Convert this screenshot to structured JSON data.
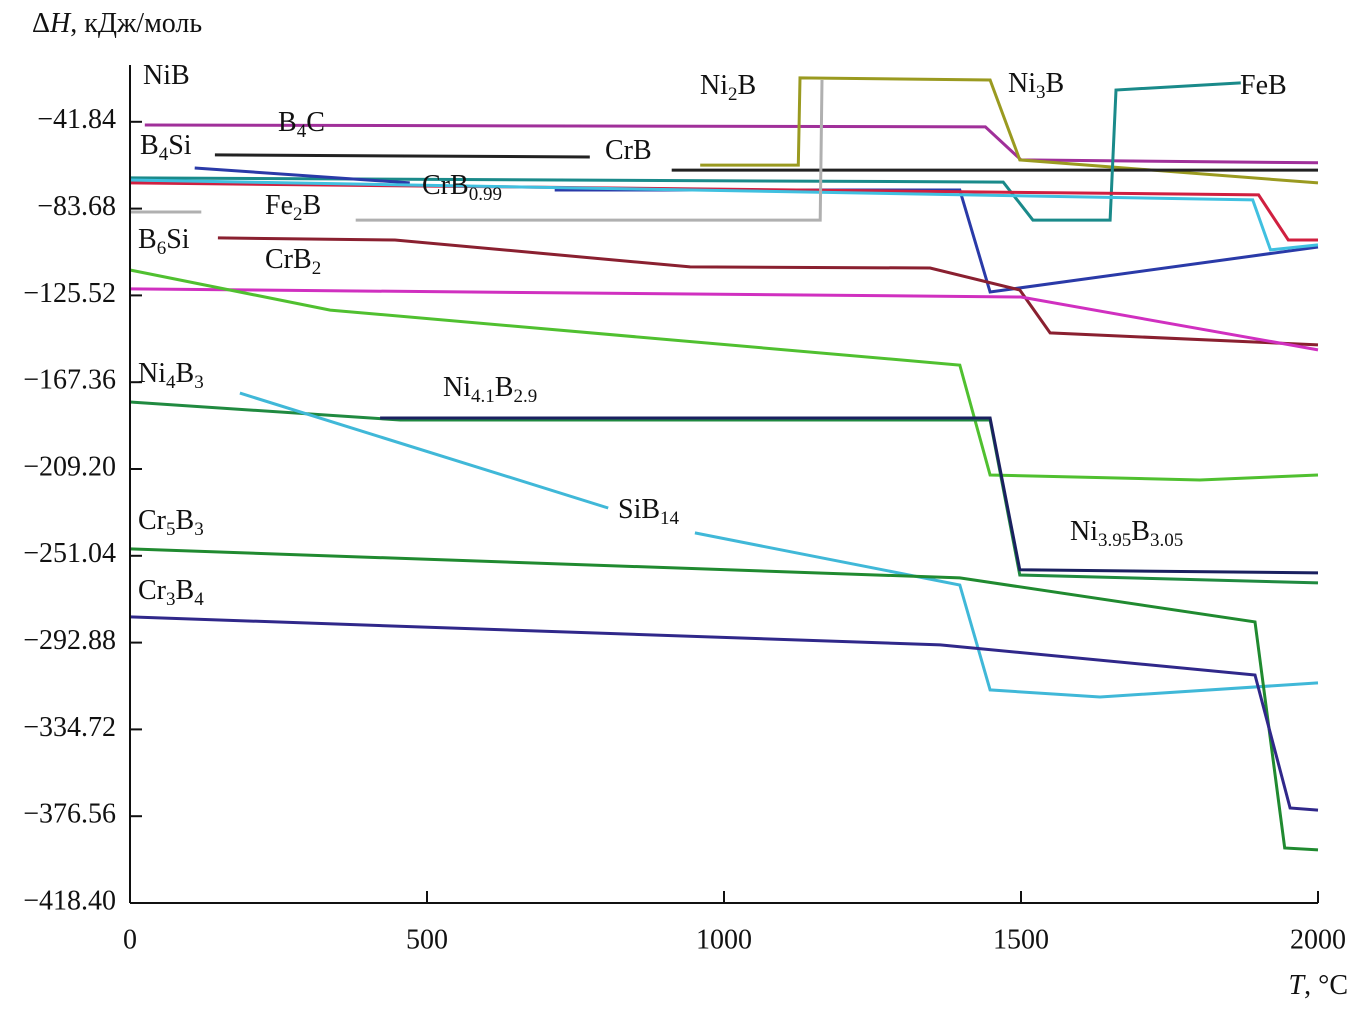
{
  "chart_data": {
    "type": "line",
    "y_label": [
      "Δ",
      "H",
      ", кДж/моль"
    ],
    "x_label": [
      "T",
      ", °C"
    ],
    "xlim": [
      0,
      2000
    ],
    "xticks": [
      0,
      500,
      1000,
      1500,
      2000
    ],
    "ylim": [
      -418.4,
      0
    ],
    "yticks": [
      {
        "value": -41.84,
        "label": "−41.84"
      },
      {
        "value": -83.68,
        "label": "−83.68"
      },
      {
        "value": -125.52,
        "label": "−125.52"
      },
      {
        "value": -167.36,
        "label": "−167.36"
      },
      {
        "value": -209.2,
        "label": "−209.20"
      },
      {
        "value": -251.04,
        "label": "−251.04"
      },
      {
        "value": -292.88,
        "label": "−292.88"
      },
      {
        "value": -334.72,
        "label": "−334.72"
      },
      {
        "value": -376.56,
        "label": "−376.56"
      },
      {
        "value": -418.4,
        "label": "−418.40"
      }
    ],
    "series": [
      {
        "color": "#a0309a",
        "x": [
          25,
          1440,
          1500,
          2000
        ],
        "values": [
          -43.4,
          -44.3,
          -60.2,
          -61.6
        ]
      },
      {
        "color": "#9a9a20",
        "x": [
          960,
          1125,
          1128,
          1448,
          1498,
          2000
        ],
        "values": [
          -62.7,
          -62.7,
          -20.7,
          -21.7,
          -60.2,
          -71.3
        ]
      },
      {
        "color": "#222222",
        "x": [
          143,
          774,
          850,
          912,
          2000
        ],
        "values": [
          -57.8,
          -58.8,
          null,
          -65.1,
          -65.1
        ]
      },
      {
        "color": "#1a8a8a",
        "x": [
          0,
          1470,
          1520,
          1650,
          1660,
          1870
        ],
        "values": [
          -68.9,
          -70.9,
          -89.2,
          -89.2,
          -26.5,
          -23.1
        ]
      },
      {
        "color": "#2a3aa8",
        "x": [
          109,
          471,
          600,
          715,
          1397,
          1448,
          2000
        ],
        "values": [
          -64.1,
          -71.3,
          null,
          -74.7,
          -74.7,
          -123.9,
          -102.2
        ]
      },
      {
        "color": "#d02040",
        "x": [
          0,
          1900,
          1950,
          2000
        ],
        "values": [
          -71.3,
          -77.1,
          -98.8,
          -98.8
        ]
      },
      {
        "color": "#40c0e0",
        "x": [
          0,
          1890,
          1920,
          2000
        ],
        "values": [
          -69.9,
          -79.5,
          -103.6,
          -101.2
        ]
      },
      {
        "color": "#b0b0b0",
        "x": [
          0,
          120,
          250,
          380,
          1162,
          1165
        ],
        "values": [
          -85.3,
          -85.3,
          null,
          -89.2,
          -89.2,
          -21.7
        ]
      },
      {
        "color": "#8a2030",
        "x": [
          148,
          446,
          943,
          1347,
          1498,
          1549,
          2000
        ],
        "values": [
          -97.8,
          -98.8,
          -111.8,
          -112.3,
          -122.9,
          -143.6,
          -149.4
        ]
      },
      {
        "color": "#d030c0",
        "x": [
          0,
          1500,
          1953,
          2000
        ],
        "values": [
          -122.4,
          -126.3,
          -149.4,
          -151.8
        ]
      },
      {
        "color": "#50c030",
        "x": [
          0,
          337,
          1397,
          1448,
          1801,
          2000
        ],
        "values": [
          -113.3,
          -132.6,
          -159.1,
          -212.1,
          -214.5,
          -212.1
        ]
      },
      {
        "color": "#208a40",
        "x": [
          0,
          455,
          1448,
          1498,
          2000
        ],
        "values": [
          -176.9,
          -185.6,
          -185.6,
          -260.3,
          -264.1
        ]
      },
      {
        "color": "#1a2060",
        "x": [
          421,
          1448,
          1498,
          2000
        ],
        "values": [
          -184.6,
          -184.6,
          -257.8,
          -259.3
        ]
      },
      {
        "color": "#40b8d8",
        "x": [
          185,
          805,
          880,
          951,
          1397,
          1448,
          1633,
          2000
        ],
        "values": [
          -172.6,
          -228.0,
          null,
          -240.0,
          -265.1,
          -315.7,
          -319.1,
          -312.3
        ]
      },
      {
        "color": "#208a30",
        "x": [
          0,
          1397,
          1894,
          1944,
          2000
        ],
        "values": [
          -247.7,
          -261.7,
          -282.9,
          -391.9,
          -392.8
        ]
      },
      {
        "color": "#30288a",
        "x": [
          0,
          1364,
          1894,
          1953,
          2000
        ],
        "values": [
          -280.5,
          -294.0,
          -308.5,
          -372.6,
          -373.6
        ]
      }
    ],
    "annotations": [
      [
        "NiB"
      ],
      [
        "B",
        "4",
        "C"
      ],
      [
        "B",
        "4",
        "Si"
      ],
      [
        "CrB"
      ],
      [
        "Ni",
        "2",
        "B"
      ],
      [
        "Ni",
        "3",
        "B"
      ],
      [
        "FeB"
      ],
      [
        "CrB",
        "0.99"
      ],
      [
        "Fe",
        "2",
        "B"
      ],
      [
        "B",
        "6",
        "Si"
      ],
      [
        "CrB",
        "2"
      ],
      [
        "Ni",
        "4",
        "B",
        "3"
      ],
      [
        "Ni",
        "4.1",
        "B",
        "2.9"
      ],
      [
        "SiB",
        "14"
      ],
      [
        "Ni",
        "3.95",
        "B",
        "3.05"
      ],
      [
        "Cr",
        "5",
        "B",
        "3"
      ],
      [
        "Cr",
        "3",
        "B",
        "4"
      ]
    ]
  }
}
